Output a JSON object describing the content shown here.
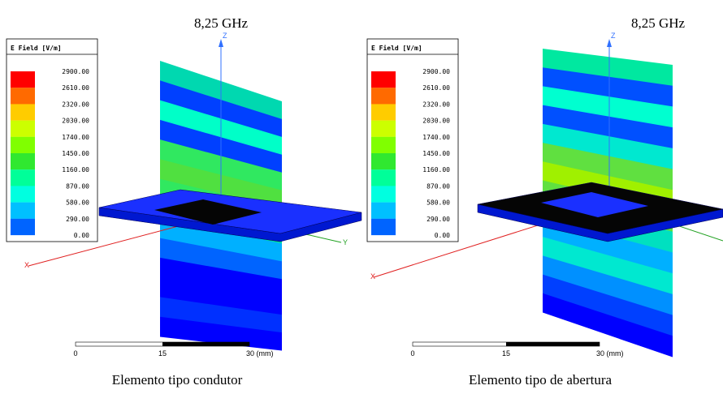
{
  "panels": [
    {
      "title": "8,25 GHz",
      "legend": {
        "title": "E Field [V/m]",
        "labels": [
          "2900.00",
          "2610.00",
          "2320.00",
          "2030.00",
          "1740.00",
          "1450.00",
          "1160.00",
          "870.00",
          "580.00",
          "290.00",
          "0.00"
        ]
      },
      "axes": {
        "z": "Z",
        "y": "Y",
        "x": "X"
      },
      "scale": {
        "labels": [
          "0",
          "15",
          "30 (mm)"
        ]
      },
      "caption": "Elemento tipo condutor"
    },
    {
      "title": "8,25 GHz",
      "legend": {
        "title": "E Field [V/m]",
        "labels": [
          "2900.00",
          "2610.00",
          "2320.00",
          "2030.00",
          "1740.00",
          "1450.00",
          "1160.00",
          "870.00",
          "580.00",
          "290.00",
          "0.00"
        ]
      },
      "axes": {
        "z": "Z",
        "x": "X"
      },
      "scale": {
        "labels": [
          "0",
          "15",
          "30 (mm)"
        ]
      },
      "caption": "Elemento tipo de abertura"
    }
  ]
}
